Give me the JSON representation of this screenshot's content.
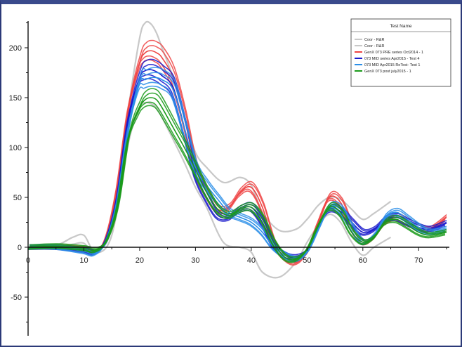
{
  "colors": {
    "frame": "#2c3a78",
    "axis": "#111111"
  },
  "chart_data": {
    "type": "line",
    "title": "",
    "xlabel": "",
    "ylabel": "",
    "xlim": [
      0,
      75
    ],
    "ylim": [
      -80,
      225
    ],
    "x_ticks": [
      0,
      10,
      20,
      30,
      40,
      50,
      60,
      70
    ],
    "y_ticks": [
      -50,
      0,
      50,
      100,
      150,
      200
    ],
    "legend": {
      "title": "Test Name",
      "placement": "top-right",
      "entries": [
        {
          "label": "Coor - R&R",
          "color": "#c8c8c8"
        },
        {
          "label": "Coor - R&R",
          "color": "#c8c8c8"
        },
        {
          "label": "GenX 073 PRE series Oct2014 - 1",
          "color": "#ee4444"
        },
        {
          "label": "073 MID series Apr2015 - Test 4",
          "color": "#1a1acc"
        },
        {
          "label": "073 MID Apr2015 ReTest- Test 1",
          "color": "#2a8ee8"
        },
        {
          "label": "GenX 073 post july2015 - 1",
          "color": "#1a9a1a"
        }
      ]
    },
    "series": [
      {
        "name": "Coor - R&R",
        "color": "#c8c8c8",
        "x": [
          0,
          5,
          8,
          10,
          12,
          15,
          18,
          20,
          21,
          22,
          23,
          24,
          26,
          28,
          30,
          32,
          35,
          38,
          40,
          42,
          45,
          48,
          50,
          52,
          54,
          56,
          58,
          60,
          62,
          65
        ],
        "y": [
          0,
          2,
          10,
          12,
          -3,
          20,
          140,
          210,
          225,
          224,
          215,
          200,
          170,
          130,
          95,
          80,
          65,
          70,
          62,
          35,
          17,
          18,
          28,
          42,
          50,
          48,
          38,
          28,
          34,
          46
        ]
      },
      {
        "name": "Coor - R&R",
        "color": "#c8c8c8",
        "x": [
          0,
          5,
          8,
          10,
          12,
          15,
          18,
          20,
          21,
          22,
          23,
          24,
          26,
          28,
          30,
          32,
          35,
          38,
          40,
          42,
          45,
          48,
          50,
          52,
          54,
          56,
          58,
          60,
          62,
          65
        ],
        "y": [
          0,
          0,
          3,
          4,
          -6,
          12,
          105,
          140,
          145,
          144,
          140,
          130,
          108,
          85,
          60,
          40,
          5,
          0,
          -5,
          -25,
          -30,
          -15,
          5,
          22,
          33,
          25,
          5,
          -8,
          0,
          10
        ]
      },
      {
        "name": "GenX 073 PRE series Oct2014 - 1",
        "color": "#ee4444",
        "x": [
          0,
          5,
          10,
          12,
          14,
          16,
          18,
          20,
          21,
          22,
          23,
          24,
          26,
          28,
          30,
          32,
          34,
          36,
          38,
          40,
          42,
          44,
          46,
          48,
          50,
          52,
          54,
          56,
          58,
          60,
          62,
          64,
          66,
          68,
          70,
          72,
          75
        ],
        "y": [
          0,
          0,
          -2,
          -5,
          10,
          60,
          140,
          185,
          195,
          197,
          195,
          190,
          170,
          130,
          80,
          55,
          38,
          40,
          55,
          60,
          40,
          5,
          -10,
          -15,
          -5,
          25,
          50,
          45,
          20,
          5,
          10,
          25,
          30,
          25,
          20,
          18,
          30
        ]
      },
      {
        "name": "073 MID series Apr2015 - Test 4",
        "color": "#1a1acc",
        "x": [
          0,
          5,
          10,
          12,
          14,
          16,
          18,
          20,
          21,
          22,
          23,
          24,
          26,
          28,
          30,
          32,
          34,
          36,
          38,
          40,
          42,
          44,
          46,
          48,
          50,
          52,
          54,
          56,
          58,
          60,
          62,
          64,
          66,
          68,
          70,
          72,
          75
        ],
        "y": [
          0,
          0,
          -3,
          -5,
          8,
          50,
          130,
          170,
          177,
          178,
          176,
          172,
          160,
          120,
          75,
          50,
          32,
          30,
          38,
          40,
          25,
          2,
          -8,
          -10,
          -3,
          20,
          38,
          36,
          25,
          15,
          18,
          28,
          30,
          25,
          20,
          18,
          24
        ]
      },
      {
        "name": "073 MID Apr2015 ReTest- Test 1",
        "color": "#2a8ee8",
        "x": [
          0,
          5,
          10,
          12,
          14,
          16,
          18,
          20,
          21,
          22,
          23,
          24,
          26,
          28,
          30,
          32,
          34,
          36,
          38,
          40,
          42,
          44,
          46,
          48,
          50,
          52,
          54,
          56,
          58,
          60,
          62,
          64,
          66,
          68,
          70,
          72,
          75
        ],
        "y": [
          0,
          0,
          -4,
          -6,
          6,
          45,
          120,
          165,
          168,
          170,
          170,
          168,
          158,
          120,
          80,
          62,
          48,
          35,
          30,
          25,
          15,
          0,
          -8,
          -12,
          -5,
          18,
          40,
          38,
          20,
          5,
          12,
          30,
          35,
          28,
          20,
          15,
          18
        ]
      },
      {
        "name": "GenX 073 post july2015 - 1",
        "color": "#1a9a1a",
        "x": [
          0,
          5,
          10,
          12,
          14,
          16,
          18,
          20,
          21,
          22,
          23,
          24,
          26,
          28,
          30,
          32,
          34,
          36,
          38,
          40,
          42,
          44,
          46,
          48,
          50,
          52,
          54,
          56,
          58,
          60,
          62,
          64,
          66,
          68,
          70,
          72,
          75
        ],
        "y": [
          0,
          1,
          -1,
          -3,
          6,
          40,
          110,
          140,
          148,
          150,
          148,
          140,
          120,
          100,
          78,
          55,
          38,
          32,
          38,
          40,
          28,
          5,
          -10,
          -12,
          -2,
          22,
          40,
          35,
          15,
          5,
          10,
          25,
          28,
          22,
          15,
          12,
          15
        ]
      }
    ]
  }
}
